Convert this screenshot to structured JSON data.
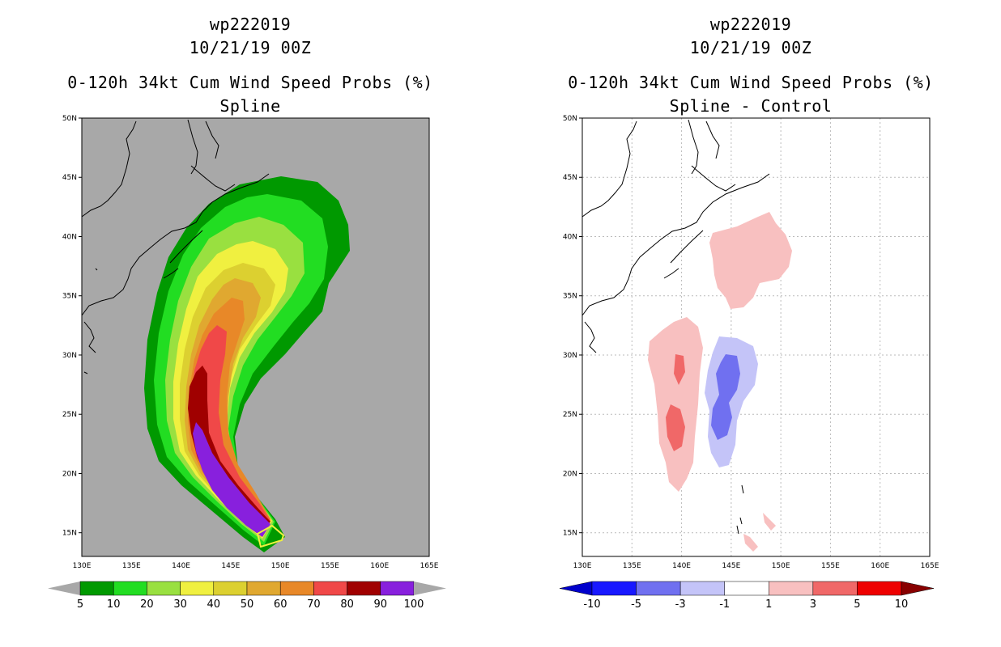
{
  "chart_data": [
    {
      "type": "filled-contour-map",
      "storm_id": "wp222019",
      "datetime": "10/21/19 00Z",
      "title": "0-120h 34kt Cum Wind Speed Probs (%)",
      "subtitle": "Spline",
      "lon_range": [
        130,
        165
      ],
      "lat_range": [
        13,
        50
      ],
      "x_ticks": [
        "130E",
        "135E",
        "140E",
        "145E",
        "150E",
        "155E",
        "160E",
        "165E"
      ],
      "y_ticks": [
        "50N",
        "45N",
        "40N",
        "35N",
        "30N",
        "25N",
        "20N",
        "15N"
      ],
      "background_color": "#a8a8a8",
      "levels": [
        5,
        10,
        20,
        30,
        40,
        50,
        60,
        70,
        80,
        90,
        100
      ],
      "colors": [
        "#009900",
        "#22dd22",
        "#99e040",
        "#f0f040",
        "#dcd030",
        "#e0a830",
        "#e88828",
        "#f04848",
        "#a00000",
        "#8820dd"
      ],
      "colorbar_labels": [
        "5",
        "10",
        "20",
        "30",
        "40",
        "50",
        "60",
        "70",
        "80",
        "90",
        "100"
      ]
    },
    {
      "type": "filled-contour-map",
      "storm_id": "wp222019",
      "datetime": "10/21/19 00Z",
      "title": "0-120h 34kt Cum Wind Speed Probs (%)",
      "subtitle": "Spline - Control",
      "lon_range": [
        130,
        165
      ],
      "lat_range": [
        13,
        50
      ],
      "x_ticks": [
        "130E",
        "135E",
        "140E",
        "145E",
        "150E",
        "155E",
        "160E",
        "165E"
      ],
      "y_ticks": [
        "50N",
        "45N",
        "40N",
        "35N",
        "30N",
        "25N",
        "20N",
        "15N"
      ],
      "grid": true,
      "levels": [
        -10,
        -5,
        -3,
        -1,
        1,
        3,
        5,
        10
      ],
      "colors": [
        "#0000cc",
        "#1818ff",
        "#7070f0",
        "#c4c4f8",
        "#ffffff",
        "#f8c0c0",
        "#f06868",
        "#ee0000",
        "#880000"
      ],
      "colorbar_labels": [
        "-10",
        "-5",
        "-3",
        "-1",
        "1",
        "3",
        "5",
        "10"
      ]
    }
  ]
}
